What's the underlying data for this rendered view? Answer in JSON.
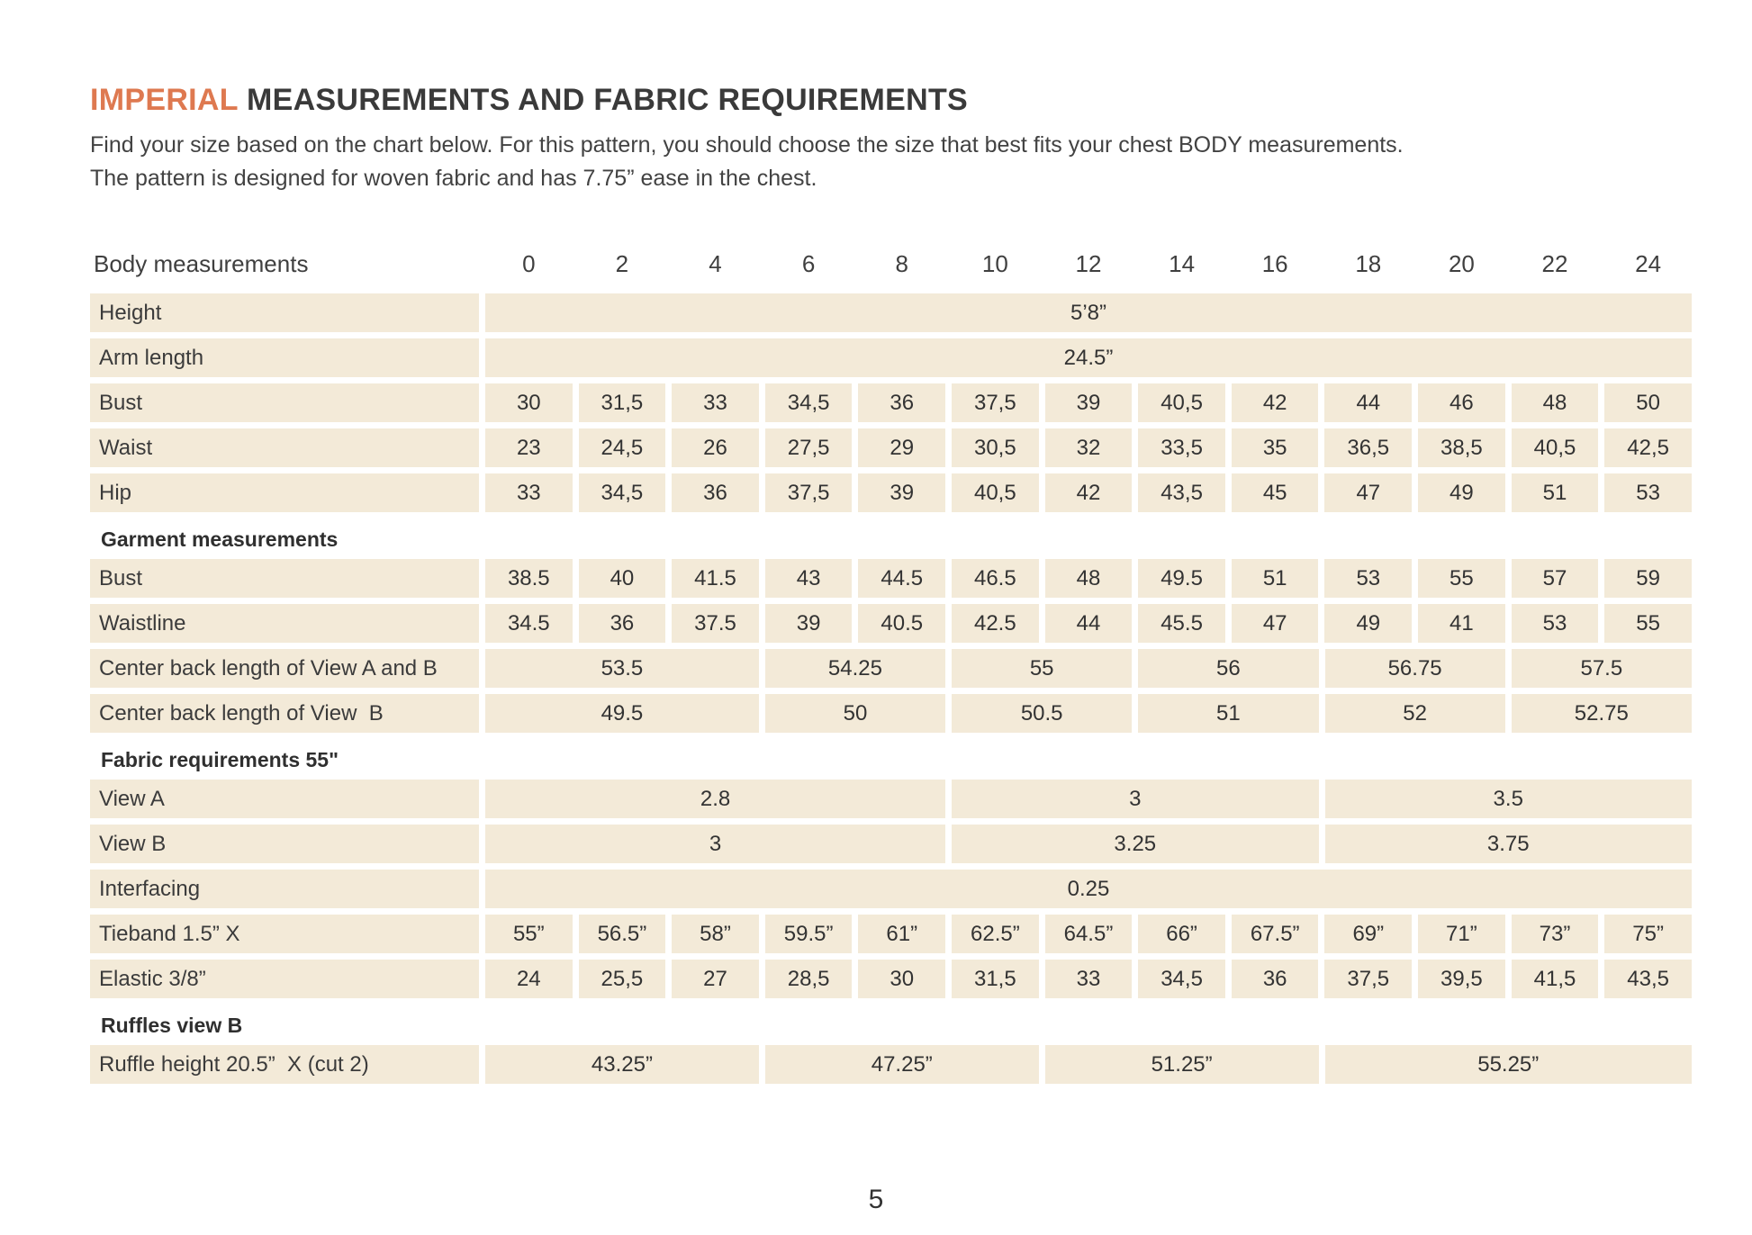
{
  "colors": {
    "accent": "#de7950",
    "cell_background": "#f3ead8",
    "text": "#3c3c3c"
  },
  "header": {
    "title_accent": "IMPERIAL",
    "title_main": " MEASUREMENTS AND FABRIC REQUIREMENTS",
    "intro_line1": "Find your size based on the chart below. For this pattern, you should choose the size that best fits your chest BODY measurements.",
    "intro_line2": "The pattern is designed for woven fabric and has 7.75” ease in the chest."
  },
  "table": {
    "size_header_label": "Body measurements",
    "sizes": [
      "0",
      "2",
      "4",
      "6",
      "8",
      "10",
      "12",
      "14",
      "16",
      "18",
      "20",
      "22",
      "24"
    ],
    "rows": [
      {
        "kind": "data",
        "label": "Height",
        "cells": [
          {
            "span": 13,
            "value": "5’8”"
          }
        ]
      },
      {
        "kind": "data",
        "label": "Arm length",
        "cells": [
          {
            "span": 13,
            "value": "24.5”"
          }
        ]
      },
      {
        "kind": "data",
        "label": "Bust",
        "cells": [
          {
            "span": 1,
            "value": "30"
          },
          {
            "span": 1,
            "value": "31,5"
          },
          {
            "span": 1,
            "value": "33"
          },
          {
            "span": 1,
            "value": "34,5"
          },
          {
            "span": 1,
            "value": "36"
          },
          {
            "span": 1,
            "value": "37,5"
          },
          {
            "span": 1,
            "value": "39"
          },
          {
            "span": 1,
            "value": "40,5"
          },
          {
            "span": 1,
            "value": "42"
          },
          {
            "span": 1,
            "value": "44"
          },
          {
            "span": 1,
            "value": "46"
          },
          {
            "span": 1,
            "value": "48"
          },
          {
            "span": 1,
            "value": "50"
          }
        ]
      },
      {
        "kind": "data",
        "label": "Waist",
        "cells": [
          {
            "span": 1,
            "value": "23"
          },
          {
            "span": 1,
            "value": "24,5"
          },
          {
            "span": 1,
            "value": "26"
          },
          {
            "span": 1,
            "value": "27,5"
          },
          {
            "span": 1,
            "value": "29"
          },
          {
            "span": 1,
            "value": "30,5"
          },
          {
            "span": 1,
            "value": "32"
          },
          {
            "span": 1,
            "value": "33,5"
          },
          {
            "span": 1,
            "value": "35"
          },
          {
            "span": 1,
            "value": "36,5"
          },
          {
            "span": 1,
            "value": "38,5"
          },
          {
            "span": 1,
            "value": "40,5"
          },
          {
            "span": 1,
            "value": "42,5"
          }
        ]
      },
      {
        "kind": "data",
        "label": "Hip",
        "cells": [
          {
            "span": 1,
            "value": "33"
          },
          {
            "span": 1,
            "value": "34,5"
          },
          {
            "span": 1,
            "value": "36"
          },
          {
            "span": 1,
            "value": "37,5"
          },
          {
            "span": 1,
            "value": "39"
          },
          {
            "span": 1,
            "value": "40,5"
          },
          {
            "span": 1,
            "value": "42"
          },
          {
            "span": 1,
            "value": "43,5"
          },
          {
            "span": 1,
            "value": "45"
          },
          {
            "span": 1,
            "value": "47"
          },
          {
            "span": 1,
            "value": "49"
          },
          {
            "span": 1,
            "value": "51"
          },
          {
            "span": 1,
            "value": "53"
          }
        ]
      },
      {
        "kind": "section",
        "label": "Garment measurements"
      },
      {
        "kind": "data",
        "label": "Bust",
        "cells": [
          {
            "span": 1,
            "value": "38.5"
          },
          {
            "span": 1,
            "value": "40"
          },
          {
            "span": 1,
            "value": "41.5"
          },
          {
            "span": 1,
            "value": "43"
          },
          {
            "span": 1,
            "value": "44.5"
          },
          {
            "span": 1,
            "value": "46.5"
          },
          {
            "span": 1,
            "value": "48"
          },
          {
            "span": 1,
            "value": "49.5"
          },
          {
            "span": 1,
            "value": "51"
          },
          {
            "span": 1,
            "value": "53"
          },
          {
            "span": 1,
            "value": "55"
          },
          {
            "span": 1,
            "value": "57"
          },
          {
            "span": 1,
            "value": "59"
          }
        ]
      },
      {
        "kind": "data",
        "label": "Waistline",
        "cells": [
          {
            "span": 1,
            "value": "34.5"
          },
          {
            "span": 1,
            "value": "36"
          },
          {
            "span": 1,
            "value": "37.5"
          },
          {
            "span": 1,
            "value": "39"
          },
          {
            "span": 1,
            "value": "40.5"
          },
          {
            "span": 1,
            "value": "42.5"
          },
          {
            "span": 1,
            "value": "44"
          },
          {
            "span": 1,
            "value": "45.5"
          },
          {
            "span": 1,
            "value": "47"
          },
          {
            "span": 1,
            "value": "49"
          },
          {
            "span": 1,
            "value": "41"
          },
          {
            "span": 1,
            "value": "53"
          },
          {
            "span": 1,
            "value": "55"
          }
        ]
      },
      {
        "kind": "data",
        "label": "Center back length of View A and B",
        "cells": [
          {
            "span": 3,
            "value": "53.5"
          },
          {
            "span": 2,
            "value": "54.25"
          },
          {
            "span": 2,
            "value": "55"
          },
          {
            "span": 2,
            "value": "56"
          },
          {
            "span": 2,
            "value": "56.75"
          },
          {
            "span": 2,
            "value": "57.5"
          }
        ]
      },
      {
        "kind": "data",
        "label": "Center back length of View  B",
        "cells": [
          {
            "span": 3,
            "value": "49.5"
          },
          {
            "span": 2,
            "value": "50"
          },
          {
            "span": 2,
            "value": "50.5"
          },
          {
            "span": 2,
            "value": "51"
          },
          {
            "span": 2,
            "value": "52"
          },
          {
            "span": 2,
            "value": "52.75"
          }
        ]
      },
      {
        "kind": "section",
        "label": "Fabric requirements 55\""
      },
      {
        "kind": "data",
        "label": "View A",
        "cells": [
          {
            "span": 5,
            "value": "2.8"
          },
          {
            "span": 4,
            "value": "3"
          },
          {
            "span": 4,
            "value": "3.5"
          }
        ]
      },
      {
        "kind": "data",
        "label": "View B",
        "cells": [
          {
            "span": 5,
            "value": "3"
          },
          {
            "span": 4,
            "value": "3.25"
          },
          {
            "span": 4,
            "value": "3.75"
          }
        ]
      },
      {
        "kind": "data",
        "label": "Interfacing",
        "cells": [
          {
            "span": 13,
            "value": "0.25"
          }
        ]
      },
      {
        "kind": "data",
        "label": "Tieband 1.5” X",
        "cells": [
          {
            "span": 1,
            "value": "55”"
          },
          {
            "span": 1,
            "value": "56.5”"
          },
          {
            "span": 1,
            "value": "58”"
          },
          {
            "span": 1,
            "value": "59.5”"
          },
          {
            "span": 1,
            "value": "61”"
          },
          {
            "span": 1,
            "value": "62.5”"
          },
          {
            "span": 1,
            "value": "64.5”"
          },
          {
            "span": 1,
            "value": "66”"
          },
          {
            "span": 1,
            "value": "67.5”"
          },
          {
            "span": 1,
            "value": "69”"
          },
          {
            "span": 1,
            "value": "71”"
          },
          {
            "span": 1,
            "value": "73”"
          },
          {
            "span": 1,
            "value": "75”"
          }
        ]
      },
      {
        "kind": "data",
        "label": "Elastic 3/8”",
        "cells": [
          {
            "span": 1,
            "value": "24"
          },
          {
            "span": 1,
            "value": "25,5"
          },
          {
            "span": 1,
            "value": "27"
          },
          {
            "span": 1,
            "value": "28,5"
          },
          {
            "span": 1,
            "value": "30"
          },
          {
            "span": 1,
            "value": "31,5"
          },
          {
            "span": 1,
            "value": "33"
          },
          {
            "span": 1,
            "value": "34,5"
          },
          {
            "span": 1,
            "value": "36"
          },
          {
            "span": 1,
            "value": "37,5"
          },
          {
            "span": 1,
            "value": "39,5"
          },
          {
            "span": 1,
            "value": "41,5"
          },
          {
            "span": 1,
            "value": "43,5"
          }
        ]
      },
      {
        "kind": "section",
        "label": "Ruffles view B"
      },
      {
        "kind": "data",
        "label": "Ruffle height 20.5”  X (cut 2)",
        "cells": [
          {
            "span": 3,
            "value": "43.25”"
          },
          {
            "span": 3,
            "value": "47.25”"
          },
          {
            "span": 3,
            "value": "51.25”"
          },
          {
            "span": 4,
            "value": "55.25”"
          }
        ]
      }
    ]
  },
  "footer": {
    "page_number": "5"
  }
}
